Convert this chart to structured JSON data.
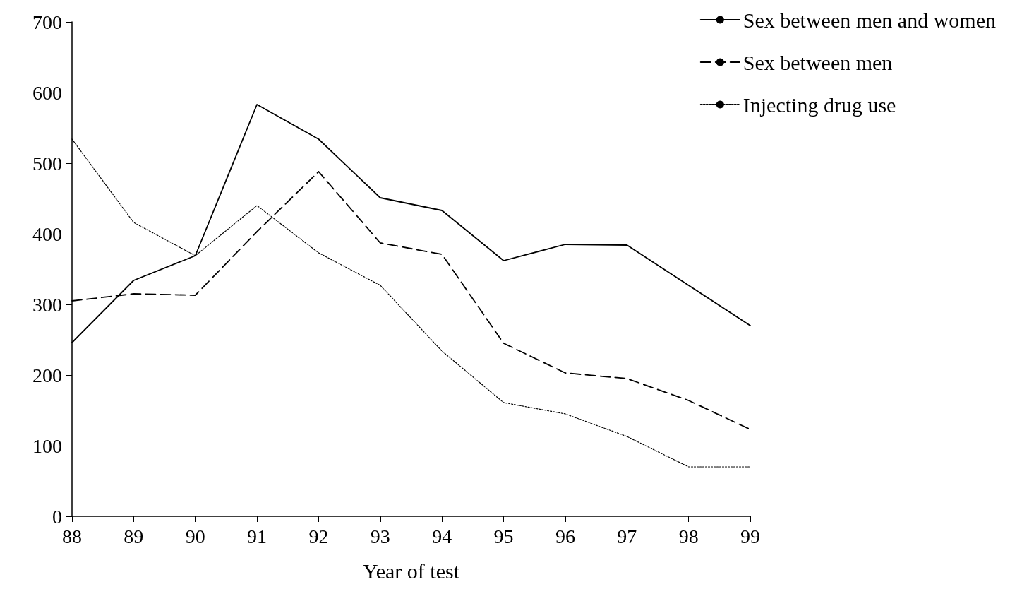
{
  "chart_data": {
    "type": "line",
    "xlabel": "Year of test",
    "x": [
      88,
      89,
      90,
      91,
      92,
      93,
      94,
      95,
      96,
      97,
      98,
      99
    ],
    "series": [
      {
        "name": "Sex between men and women",
        "color": "#000000",
        "line_style": "solid",
        "values": [
          246,
          334,
          369,
          583,
          534,
          451,
          433,
          362,
          385,
          384,
          327,
          270
        ]
      },
      {
        "name": "Sex between men",
        "color": "#000000",
        "line_style": "dashed",
        "values": [
          305,
          315,
          313,
          403,
          488,
          387,
          371,
          245,
          203,
          195,
          164,
          123
        ]
      },
      {
        "name": "Injecting drug use",
        "color": "#000000",
        "line_style": "dotted",
        "values": [
          534,
          416,
          369,
          440,
          373,
          327,
          234,
          161,
          145,
          113,
          70,
          70
        ]
      }
    ],
    "xlim": [
      88,
      99
    ],
    "xticks": [
      88,
      89,
      90,
      91,
      92,
      93,
      94,
      95,
      96,
      97,
      98,
      99
    ],
    "ylim": [
      0,
      700
    ],
    "yticks": [
      0,
      100,
      200,
      300,
      400,
      500,
      600,
      700
    ],
    "grid": false,
    "legend": "top right",
    "marker": "none"
  }
}
